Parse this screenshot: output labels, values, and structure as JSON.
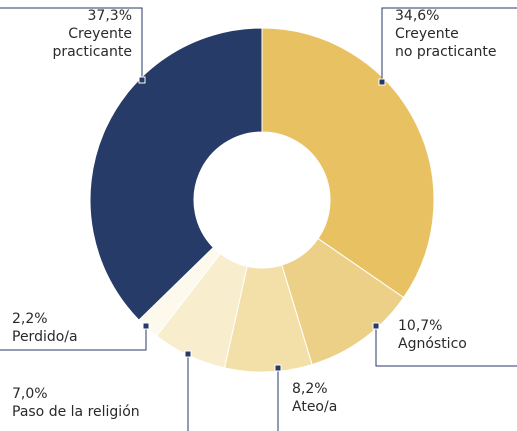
{
  "chart_data": {
    "type": "donut",
    "categories": [
      "Creyente\nno practicante",
      "Agnóstico",
      "Ateo/a",
      "Paso de la religión",
      "Perdido/a",
      "Creyente\npracticante"
    ],
    "values": [
      34.6,
      10.7,
      8.2,
      7.0,
      2.2,
      37.3
    ],
    "value_labels": [
      "34,6%",
      "10,7%",
      "8,2%",
      "7,0%",
      "2,2%",
      "37,3%"
    ],
    "colors": [
      "#e8c262",
      "#edd088",
      "#f3e0a8",
      "#f8edcd",
      "#fdf9ec",
      "#263b67"
    ]
  }
}
